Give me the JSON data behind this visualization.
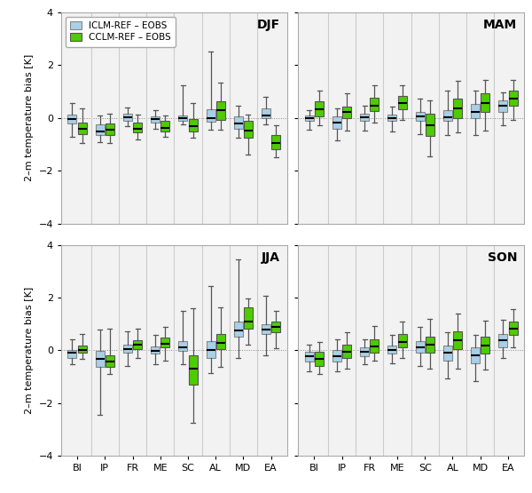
{
  "seasons": [
    "DJF",
    "MAM",
    "JJA",
    "SON"
  ],
  "regions": [
    "BI",
    "IP",
    "FR",
    "ME",
    "SC",
    "AL",
    "MD",
    "EA"
  ],
  "iclm_color": "#a8d0e8",
  "cclm_color": "#4dcc00",
  "ylabel": "2–m temperature bias [K]",
  "ylim": [
    -4,
    4
  ],
  "yticks": [
    -4,
    -2,
    0,
    2,
    4
  ],
  "legend_labels": [
    "ICLM-REF – EOBS",
    "CCLM-REF – EOBS"
  ],
  "bg_color": "#f0f0f0",
  "boxplot_data": {
    "DJF": {
      "ICLM": {
        "BI": {
          "whislo": -0.7,
          "q1": -0.22,
          "med": -0.05,
          "q3": 0.12,
          "whishi": 0.55
        },
        "IP": {
          "whislo": -0.9,
          "q1": -0.65,
          "med": -0.5,
          "q3": -0.25,
          "whishi": 0.1
        },
        "FR": {
          "whislo": -0.3,
          "q1": -0.1,
          "med": 0.02,
          "q3": 0.15,
          "whishi": 0.4
        },
        "ME": {
          "whislo": -0.4,
          "q1": -0.18,
          "med": -0.05,
          "q3": 0.05,
          "whishi": 0.3
        },
        "SC": {
          "whislo": -0.25,
          "q1": -0.1,
          "med": -0.02,
          "q3": 0.08,
          "whishi": 1.25
        },
        "AL": {
          "whislo": -0.45,
          "q1": -0.15,
          "med": -0.02,
          "q3": 0.32,
          "whishi": 2.5
        },
        "MD": {
          "whislo": -0.75,
          "q1": -0.4,
          "med": -0.2,
          "q3": 0.05,
          "whishi": 0.45
        },
        "EA": {
          "whislo": -0.25,
          "q1": -0.02,
          "med": 0.1,
          "q3": 0.38,
          "whishi": 0.8
        }
      },
      "CCLM": {
        "BI": {
          "whislo": -0.95,
          "q1": -0.6,
          "med": -0.42,
          "q3": -0.18,
          "whishi": 0.35
        },
        "IP": {
          "whislo": -0.95,
          "q1": -0.65,
          "med": -0.45,
          "q3": -0.2,
          "whishi": 0.15
        },
        "FR": {
          "whislo": -0.8,
          "q1": -0.55,
          "med": -0.4,
          "q3": -0.18,
          "whishi": 0.12
        },
        "ME": {
          "whislo": -0.7,
          "q1": -0.5,
          "med": -0.38,
          "q3": -0.12,
          "whishi": 0.08
        },
        "SC": {
          "whislo": -0.75,
          "q1": -0.5,
          "med": -0.32,
          "q3": -0.05,
          "whishi": 0.55
        },
        "AL": {
          "whislo": -0.45,
          "q1": -0.08,
          "med": 0.28,
          "q3": 0.62,
          "whishi": 1.35
        },
        "MD": {
          "whislo": -1.4,
          "q1": -0.75,
          "med": -0.48,
          "q3": -0.12,
          "whishi": 0.12
        },
        "EA": {
          "whislo": -1.5,
          "q1": -1.18,
          "med": -0.95,
          "q3": -0.65,
          "whishi": -0.28
        }
      }
    },
    "MAM": {
      "ICLM": {
        "BI": {
          "whislo": -0.45,
          "q1": -0.12,
          "med": -0.02,
          "q3": 0.08,
          "whishi": 0.28
        },
        "IP": {
          "whislo": -0.85,
          "q1": -0.4,
          "med": -0.18,
          "q3": 0.05,
          "whishi": 0.38
        },
        "FR": {
          "whislo": -0.48,
          "q1": -0.1,
          "med": 0.02,
          "q3": 0.15,
          "whishi": 0.48
        },
        "ME": {
          "whislo": -0.5,
          "q1": -0.12,
          "med": -0.02,
          "q3": 0.12,
          "whishi": 0.42
        },
        "SC": {
          "whislo": -0.6,
          "q1": -0.12,
          "med": 0.05,
          "q3": 0.22,
          "whishi": 0.72
        },
        "AL": {
          "whislo": -0.65,
          "q1": -0.12,
          "med": 0.02,
          "q3": 0.28,
          "whishi": 1.05
        },
        "MD": {
          "whislo": -0.65,
          "q1": -0.02,
          "med": 0.22,
          "q3": 0.52,
          "whishi": 1.05
        },
        "EA": {
          "whislo": -0.28,
          "q1": 0.22,
          "med": 0.45,
          "q3": 0.68,
          "whishi": 0.98
        }
      },
      "CCLM": {
        "BI": {
          "whislo": -0.28,
          "q1": 0.05,
          "med": 0.32,
          "q3": 0.62,
          "whishi": 1.05
        },
        "IP": {
          "whislo": -0.48,
          "q1": -0.02,
          "med": 0.22,
          "q3": 0.42,
          "whishi": 0.92
        },
        "FR": {
          "whislo": -0.18,
          "q1": 0.25,
          "med": 0.48,
          "q3": 0.78,
          "whishi": 1.25
        },
        "ME": {
          "whislo": -0.08,
          "q1": 0.32,
          "med": 0.58,
          "q3": 0.82,
          "whishi": 1.25
        },
        "SC": {
          "whislo": -1.45,
          "q1": -0.68,
          "med": -0.28,
          "q3": 0.15,
          "whishi": 0.68
        },
        "AL": {
          "whislo": -0.55,
          "q1": 0.0,
          "med": 0.38,
          "q3": 0.72,
          "whishi": 1.42
        },
        "MD": {
          "whislo": -0.48,
          "q1": 0.22,
          "med": 0.58,
          "q3": 0.92,
          "whishi": 1.45
        },
        "EA": {
          "whislo": -0.08,
          "q1": 0.48,
          "med": 0.72,
          "q3": 1.02,
          "whishi": 1.45
        }
      }
    },
    "JJA": {
      "ICLM": {
        "BI": {
          "whislo": -0.52,
          "q1": -0.28,
          "med": -0.1,
          "q3": 0.02,
          "whishi": 0.42
        },
        "IP": {
          "whislo": -2.45,
          "q1": -0.62,
          "med": -0.32,
          "q3": -0.02,
          "whishi": 0.78
        },
        "FR": {
          "whislo": -0.58,
          "q1": -0.08,
          "med": 0.05,
          "q3": 0.22,
          "whishi": 0.72
        },
        "ME": {
          "whislo": -0.52,
          "q1": -0.12,
          "med": -0.02,
          "q3": 0.15,
          "whishi": 0.58
        },
        "SC": {
          "whislo": -0.52,
          "q1": -0.02,
          "med": 0.12,
          "q3": 0.35,
          "whishi": 1.48
        },
        "AL": {
          "whislo": -0.85,
          "q1": -0.28,
          "med": 0.02,
          "q3": 0.35,
          "whishi": 2.45
        },
        "MD": {
          "whislo": -0.28,
          "q1": 0.52,
          "med": 0.75,
          "q3": 1.08,
          "whishi": 3.45
        },
        "EA": {
          "whislo": -0.18,
          "q1": 0.62,
          "med": 0.78,
          "q3": 0.98,
          "whishi": 2.05
        }
      },
      "CCLM": {
        "BI": {
          "whislo": -0.32,
          "q1": -0.08,
          "med": 0.02,
          "q3": 0.18,
          "whishi": 0.62
        },
        "IP": {
          "whislo": -0.88,
          "q1": -0.62,
          "med": -0.42,
          "q3": -0.18,
          "whishi": 0.82
        },
        "FR": {
          "whislo": -0.28,
          "q1": 0.05,
          "med": 0.22,
          "q3": 0.38,
          "whishi": 0.82
        },
        "ME": {
          "whislo": -0.38,
          "q1": 0.1,
          "med": 0.25,
          "q3": 0.48,
          "whishi": 0.88
        },
        "SC": {
          "whislo": -2.75,
          "q1": -1.28,
          "med": -0.68,
          "q3": -0.18,
          "whishi": 1.58
        },
        "AL": {
          "whislo": -0.62,
          "q1": 0.05,
          "med": 0.28,
          "q3": 0.62,
          "whishi": 1.62
        },
        "MD": {
          "whislo": 0.22,
          "q1": 0.82,
          "med": 1.08,
          "q3": 1.62,
          "whishi": 1.98
        },
        "EA": {
          "whislo": 0.08,
          "q1": 0.68,
          "med": 0.88,
          "q3": 1.08,
          "whishi": 1.48
        }
      }
    },
    "SON": {
      "ICLM": {
        "BI": {
          "whislo": -0.78,
          "q1": -0.42,
          "med": -0.22,
          "q3": -0.05,
          "whishi": 0.22
        },
        "IP": {
          "whislo": -0.78,
          "q1": -0.42,
          "med": -0.22,
          "q3": 0.02,
          "whishi": 0.42
        },
        "FR": {
          "whislo": -0.52,
          "q1": -0.22,
          "med": -0.05,
          "q3": 0.1,
          "whishi": 0.42
        },
        "ME": {
          "whislo": -0.48,
          "q1": -0.12,
          "med": 0.02,
          "q3": 0.18,
          "whishi": 0.58
        },
        "SC": {
          "whislo": -0.58,
          "q1": -0.08,
          "med": 0.1,
          "q3": 0.35,
          "whishi": 0.88
        },
        "AL": {
          "whislo": -1.05,
          "q1": -0.38,
          "med": -0.1,
          "q3": 0.18,
          "whishi": 0.68
        },
        "MD": {
          "whislo": -1.15,
          "q1": -0.48,
          "med": -0.18,
          "q3": 0.1,
          "whishi": 0.58
        },
        "EA": {
          "whislo": -0.28,
          "q1": 0.1,
          "med": 0.38,
          "q3": 0.62,
          "whishi": 1.15
        }
      },
      "CCLM": {
        "BI": {
          "whislo": -0.88,
          "q1": -0.58,
          "med": -0.32,
          "q3": -0.05,
          "whishi": 0.32
        },
        "IP": {
          "whislo": -0.68,
          "q1": -0.28,
          "med": -0.05,
          "q3": 0.22,
          "whishi": 0.68
        },
        "FR": {
          "whislo": -0.38,
          "q1": -0.08,
          "med": 0.15,
          "q3": 0.42,
          "whishi": 0.92
        },
        "ME": {
          "whislo": -0.28,
          "q1": 0.1,
          "med": 0.32,
          "q3": 0.62,
          "whishi": 1.08
        },
        "SC": {
          "whislo": -0.68,
          "q1": -0.08,
          "med": 0.22,
          "q3": 0.52,
          "whishi": 1.18
        },
        "AL": {
          "whislo": -0.68,
          "q1": 0.05,
          "med": 0.38,
          "q3": 0.72,
          "whishi": 1.38
        },
        "MD": {
          "whislo": -0.72,
          "q1": -0.12,
          "med": 0.18,
          "q3": 0.52,
          "whishi": 1.12
        },
        "EA": {
          "whislo": 0.12,
          "q1": 0.58,
          "med": 0.82,
          "q3": 1.08,
          "whishi": 1.55
        }
      }
    }
  }
}
